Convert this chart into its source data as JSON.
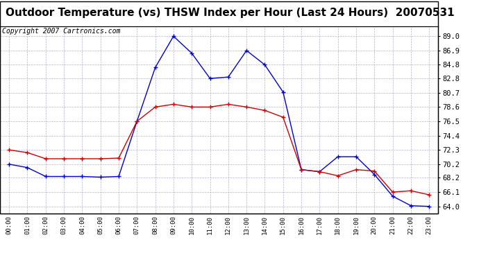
{
  "title": "Outdoor Temperature (vs) THSW Index per Hour (Last 24 Hours)  20070531",
  "copyright": "Copyright 2007 Cartronics.com",
  "hours": [
    "00:00",
    "01:00",
    "02:00",
    "03:00",
    "04:00",
    "05:00",
    "06:00",
    "07:00",
    "08:00",
    "09:00",
    "10:00",
    "11:00",
    "12:00",
    "13:00",
    "14:00",
    "15:00",
    "16:00",
    "17:00",
    "18:00",
    "19:00",
    "20:00",
    "21:00",
    "22:00",
    "23:00"
  ],
  "outdoor_temp": [
    72.3,
    71.9,
    71.0,
    71.0,
    71.0,
    71.0,
    71.1,
    76.5,
    78.6,
    79.0,
    78.6,
    78.6,
    79.0,
    78.6,
    78.1,
    77.1,
    69.4,
    69.1,
    68.5,
    69.4,
    69.2,
    66.1,
    66.3,
    65.7
  ],
  "thsw_index": [
    70.2,
    69.7,
    68.4,
    68.4,
    68.4,
    68.3,
    68.4,
    76.5,
    84.4,
    89.0,
    86.5,
    82.8,
    83.0,
    86.9,
    84.8,
    80.8,
    69.4,
    69.1,
    71.3,
    71.3,
    68.7,
    65.5,
    64.1,
    64.0
  ],
  "temp_color": "#cc0000",
  "thsw_color": "#0000cc",
  "background_color": "#ffffff",
  "plot_bg_color": "#ffffff",
  "grid_color": "#aaaacc",
  "ylim": [
    63.0,
    90.5
  ],
  "yticks": [
    64.0,
    66.1,
    68.2,
    70.2,
    72.3,
    74.4,
    76.5,
    78.6,
    80.7,
    82.8,
    84.8,
    86.9,
    89.0
  ],
  "title_fontsize": 11,
  "copyright_fontsize": 7
}
